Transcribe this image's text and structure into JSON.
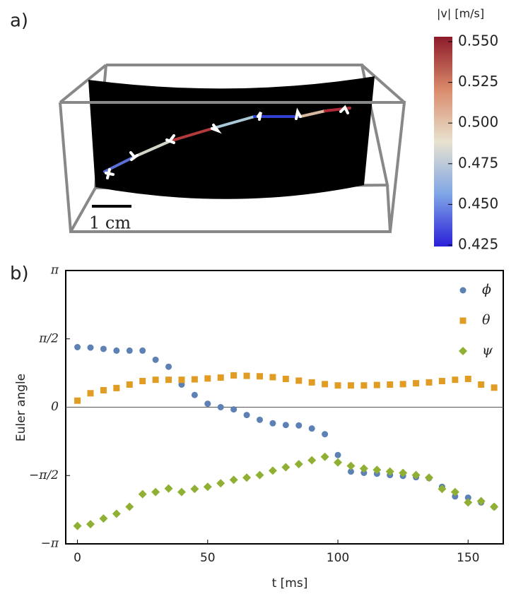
{
  "chart_data": [
    {
      "type": "colorbar",
      "panel_label": "a)",
      "label": "|v| [m/s]",
      "scale_bar": "1 cm",
      "clim": [
        0.425,
        0.55
      ],
      "ticks": [
        {
          "value": 0.55,
          "label": "0.550"
        },
        0.525,
        {
          "value": 0.5,
          "label": "0.500"
        },
        0.475,
        {
          "value": 0.45,
          "label": "0.450"
        },
        0.425
      ]
    },
    {
      "type": "scatter",
      "panel_label": "b)",
      "xlabel": "t [ms]",
      "ylabel": "Euler angle",
      "xlim": [
        -4.5,
        163.5
      ],
      "xticks": [
        0,
        50,
        100,
        150
      ],
      "ylim": [
        -3.1416,
        3.1416
      ],
      "yticks": [
        {
          "value": -3.1416,
          "label": "−π"
        },
        {
          "value": -1.5708,
          "label": "−π/2"
        },
        0,
        {
          "value": 1.5708,
          "label": "π/2"
        },
        {
          "value": 3.1416,
          "label": "π"
        }
      ],
      "zero_line": true,
      "legend": "upper right",
      "x": [
        0,
        5,
        10,
        15,
        20,
        25,
        30,
        35,
        40,
        45,
        50,
        55,
        60,
        65,
        70,
        75,
        80,
        85,
        90,
        95,
        100,
        105,
        110,
        115,
        120,
        125,
        130,
        135,
        140,
        145,
        150,
        155,
        160
      ],
      "series": [
        {
          "name": "ϕ",
          "color": "#5e81b5",
          "marker": "circle",
          "values": [
            1.38,
            1.37,
            1.34,
            1.3,
            1.3,
            1.3,
            1.09,
            0.93,
            0.52,
            0.28,
            0.08,
            0,
            -0.05,
            -0.18,
            -0.29,
            -0.37,
            -0.41,
            -0.42,
            -0.49,
            -0.62,
            -1.1,
            -1.48,
            -1.51,
            -1.53,
            -1.56,
            -1.58,
            -1.61,
            -1.63,
            -1.83,
            -2.05,
            -2.08,
            -2.19,
            -2.29
          ]
        },
        {
          "name": "θ",
          "color": "#e19c24",
          "marker": "square",
          "values": [
            0.15,
            0.32,
            0.39,
            0.44,
            0.52,
            0.6,
            0.63,
            0.63,
            0.63,
            0.64,
            0.66,
            0.68,
            0.73,
            0.72,
            0.71,
            0.69,
            0.65,
            0.61,
            0.57,
            0.53,
            0.5,
            0.5,
            0.5,
            0.51,
            0.52,
            0.53,
            0.55,
            0.57,
            0.6,
            0.63,
            0.65,
            0.52,
            0.45
          ]
        },
        {
          "name": "ψ",
          "color": "#8fb032",
          "marker": "diamond",
          "values": [
            -2.73,
            -2.69,
            -2.56,
            -2.45,
            -2.29,
            -2.0,
            -1.95,
            -1.87,
            -1.95,
            -1.88,
            -1.83,
            -1.75,
            -1.67,
            -1.62,
            -1.56,
            -1.46,
            -1.38,
            -1.31,
            -1.22,
            -1.14,
            -1.27,
            -1.35,
            -1.41,
            -1.44,
            -1.48,
            -1.51,
            -1.56,
            -1.62,
            -1.88,
            -1.95,
            -2.19,
            -2.16,
            -2.29
          ]
        }
      ]
    }
  ]
}
